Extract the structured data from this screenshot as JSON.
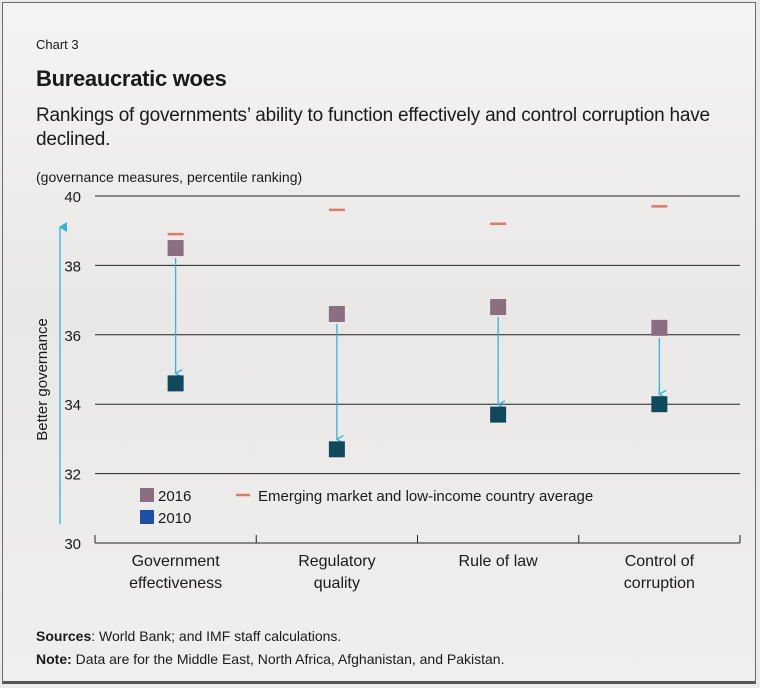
{
  "header": {
    "label": "Chart 3",
    "title": "Bureaucratic woes",
    "subtitle": "Rankings of governments’ ability to function effectively and control corruption have declined.",
    "unit": "(governance measures, percentile ranking)"
  },
  "footer": {
    "sources_label": "Sources",
    "sources_text": ": World Bank; and IMF staff calculations.",
    "note_label": "Note:",
    "note_text": " Data are for the Middle East, North Africa, Afghanistan, and Pakistan."
  },
  "chart_data": {
    "type": "scatter",
    "categories": [
      [
        "Government",
        "effectiveness"
      ],
      [
        "Regulatory",
        "quality"
      ],
      [
        "Rule of law"
      ],
      [
        "Control of",
        "corruption"
      ]
    ],
    "series": [
      {
        "name": "2016",
        "values": [
          38.5,
          36.6,
          36.8,
          36.2
        ],
        "color": "#8b6e80",
        "marker": "square"
      },
      {
        "name": "2010",
        "values": [
          34.6,
          32.7,
          33.7,
          34.0
        ],
        "color": "#0f4a5c",
        "marker": "square"
      },
      {
        "name": "Emerging market and low-income country average",
        "values": [
          38.9,
          39.6,
          39.2,
          39.7
        ],
        "color": "#e07a66",
        "marker": "dash"
      }
    ],
    "legend_swatch_2010_color": "#1f4fa3",
    "arrow_color": "#2fb5e3",
    "ylabel": "Better governance",
    "ylim": [
      30,
      40
    ],
    "yticks": [
      30,
      32,
      34,
      36,
      38,
      40
    ],
    "grid": true,
    "legend_position": "bottom-left"
  }
}
